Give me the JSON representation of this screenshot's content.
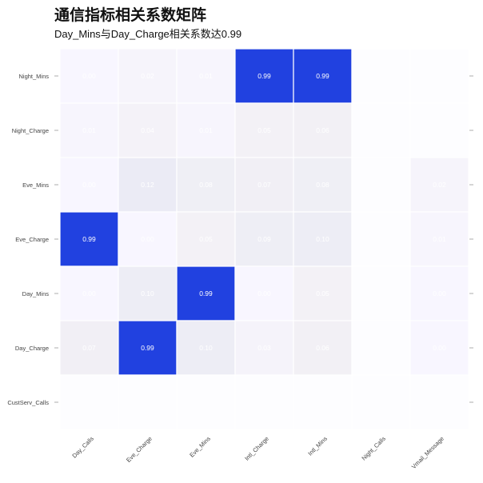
{
  "chart_data": {
    "type": "heatmap",
    "title": "通信指标相关系数矩阵",
    "subtitle": "Day_Mins与Day_Charge相关系数达0.99",
    "x_categories": [
      "Day_Calls",
      "Eve_Charge",
      "Eve_Mins",
      "Intl_Charge",
      "Intl_Mins",
      "Night_Calls",
      "Vmail_Message"
    ],
    "y_categories": [
      "Night_Mins",
      "Night_Charge",
      "Eve_Mins",
      "Eve_Charge",
      "Day_Mins",
      "Day_Charge",
      "CustServ_Calls"
    ],
    "values": [
      [
        0.0,
        0.02,
        0.01,
        0.99,
        0.99,
        null,
        null
      ],
      [
        0.01,
        0.04,
        0.01,
        0.05,
        0.06,
        null,
        null
      ],
      [
        0.0,
        0.12,
        0.08,
        0.07,
        0.08,
        null,
        0.02
      ],
      [
        0.99,
        0.0,
        0.05,
        0.09,
        0.1,
        null,
        0.01
      ],
      [
        0.0,
        0.1,
        0.99,
        0.0,
        0.05,
        null,
        0.0
      ],
      [
        0.07,
        0.99,
        0.1,
        0.03,
        0.06,
        null,
        0.0
      ],
      [
        null,
        null,
        null,
        null,
        null,
        null,
        null
      ]
    ],
    "color_low": "#ffffff",
    "color_high": "#1f3fe0",
    "show_cell_labels": true
  }
}
